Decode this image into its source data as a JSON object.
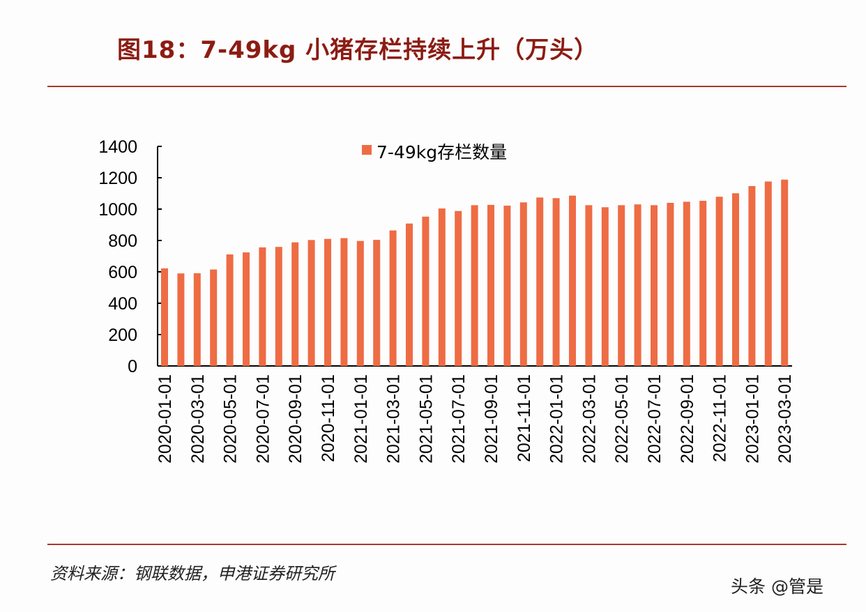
{
  "title": "图18：7-49kg 小猪存栏持续上升（万头）",
  "source": "资料来源：钢联数据，申港证券研究所",
  "watermark": "头条 @管是",
  "chart_data": {
    "type": "bar",
    "title": "图18：7-49kg 小猪存栏持续上升（万头）",
    "xlabel": "",
    "ylabel": "",
    "ylim": [
      0,
      1400
    ],
    "yticks": [
      0,
      200,
      400,
      600,
      800,
      1000,
      1200,
      1400
    ],
    "legend_position": "top-center",
    "grid": false,
    "bar_color": "#ee6c44",
    "categories": [
      "2020-01-01",
      "2020-02-01",
      "2020-03-01",
      "2020-04-01",
      "2020-05-01",
      "2020-06-01",
      "2020-07-01",
      "2020-08-01",
      "2020-09-01",
      "2020-10-01",
      "2020-11-01",
      "2020-12-01",
      "2021-01-01",
      "2021-02-01",
      "2021-03-01",
      "2021-04-01",
      "2021-05-01",
      "2021-06-01",
      "2021-07-01",
      "2021-08-01",
      "2021-09-01",
      "2021-10-01",
      "2021-11-01",
      "2021-12-01",
      "2022-01-01",
      "2022-02-01",
      "2022-03-01",
      "2022-04-01",
      "2022-05-01",
      "2022-06-01",
      "2022-07-01",
      "2022-08-01",
      "2022-09-01",
      "2022-10-01",
      "2022-11-01",
      "2022-12-01",
      "2023-01-01",
      "2023-02-01",
      "2023-03-01"
    ],
    "series": [
      {
        "name": "7-49kg存栏数量",
        "values": [
          622,
          590,
          591,
          615,
          711,
          724,
          756,
          759,
          788,
          803,
          810,
          815,
          797,
          804,
          864,
          908,
          952,
          1004,
          988,
          1025,
          1027,
          1022,
          1043,
          1074,
          1070,
          1086,
          1025,
          1012,
          1025,
          1030,
          1025,
          1040,
          1047,
          1053,
          1079,
          1101,
          1147,
          1176,
          1188
        ]
      }
    ]
  }
}
